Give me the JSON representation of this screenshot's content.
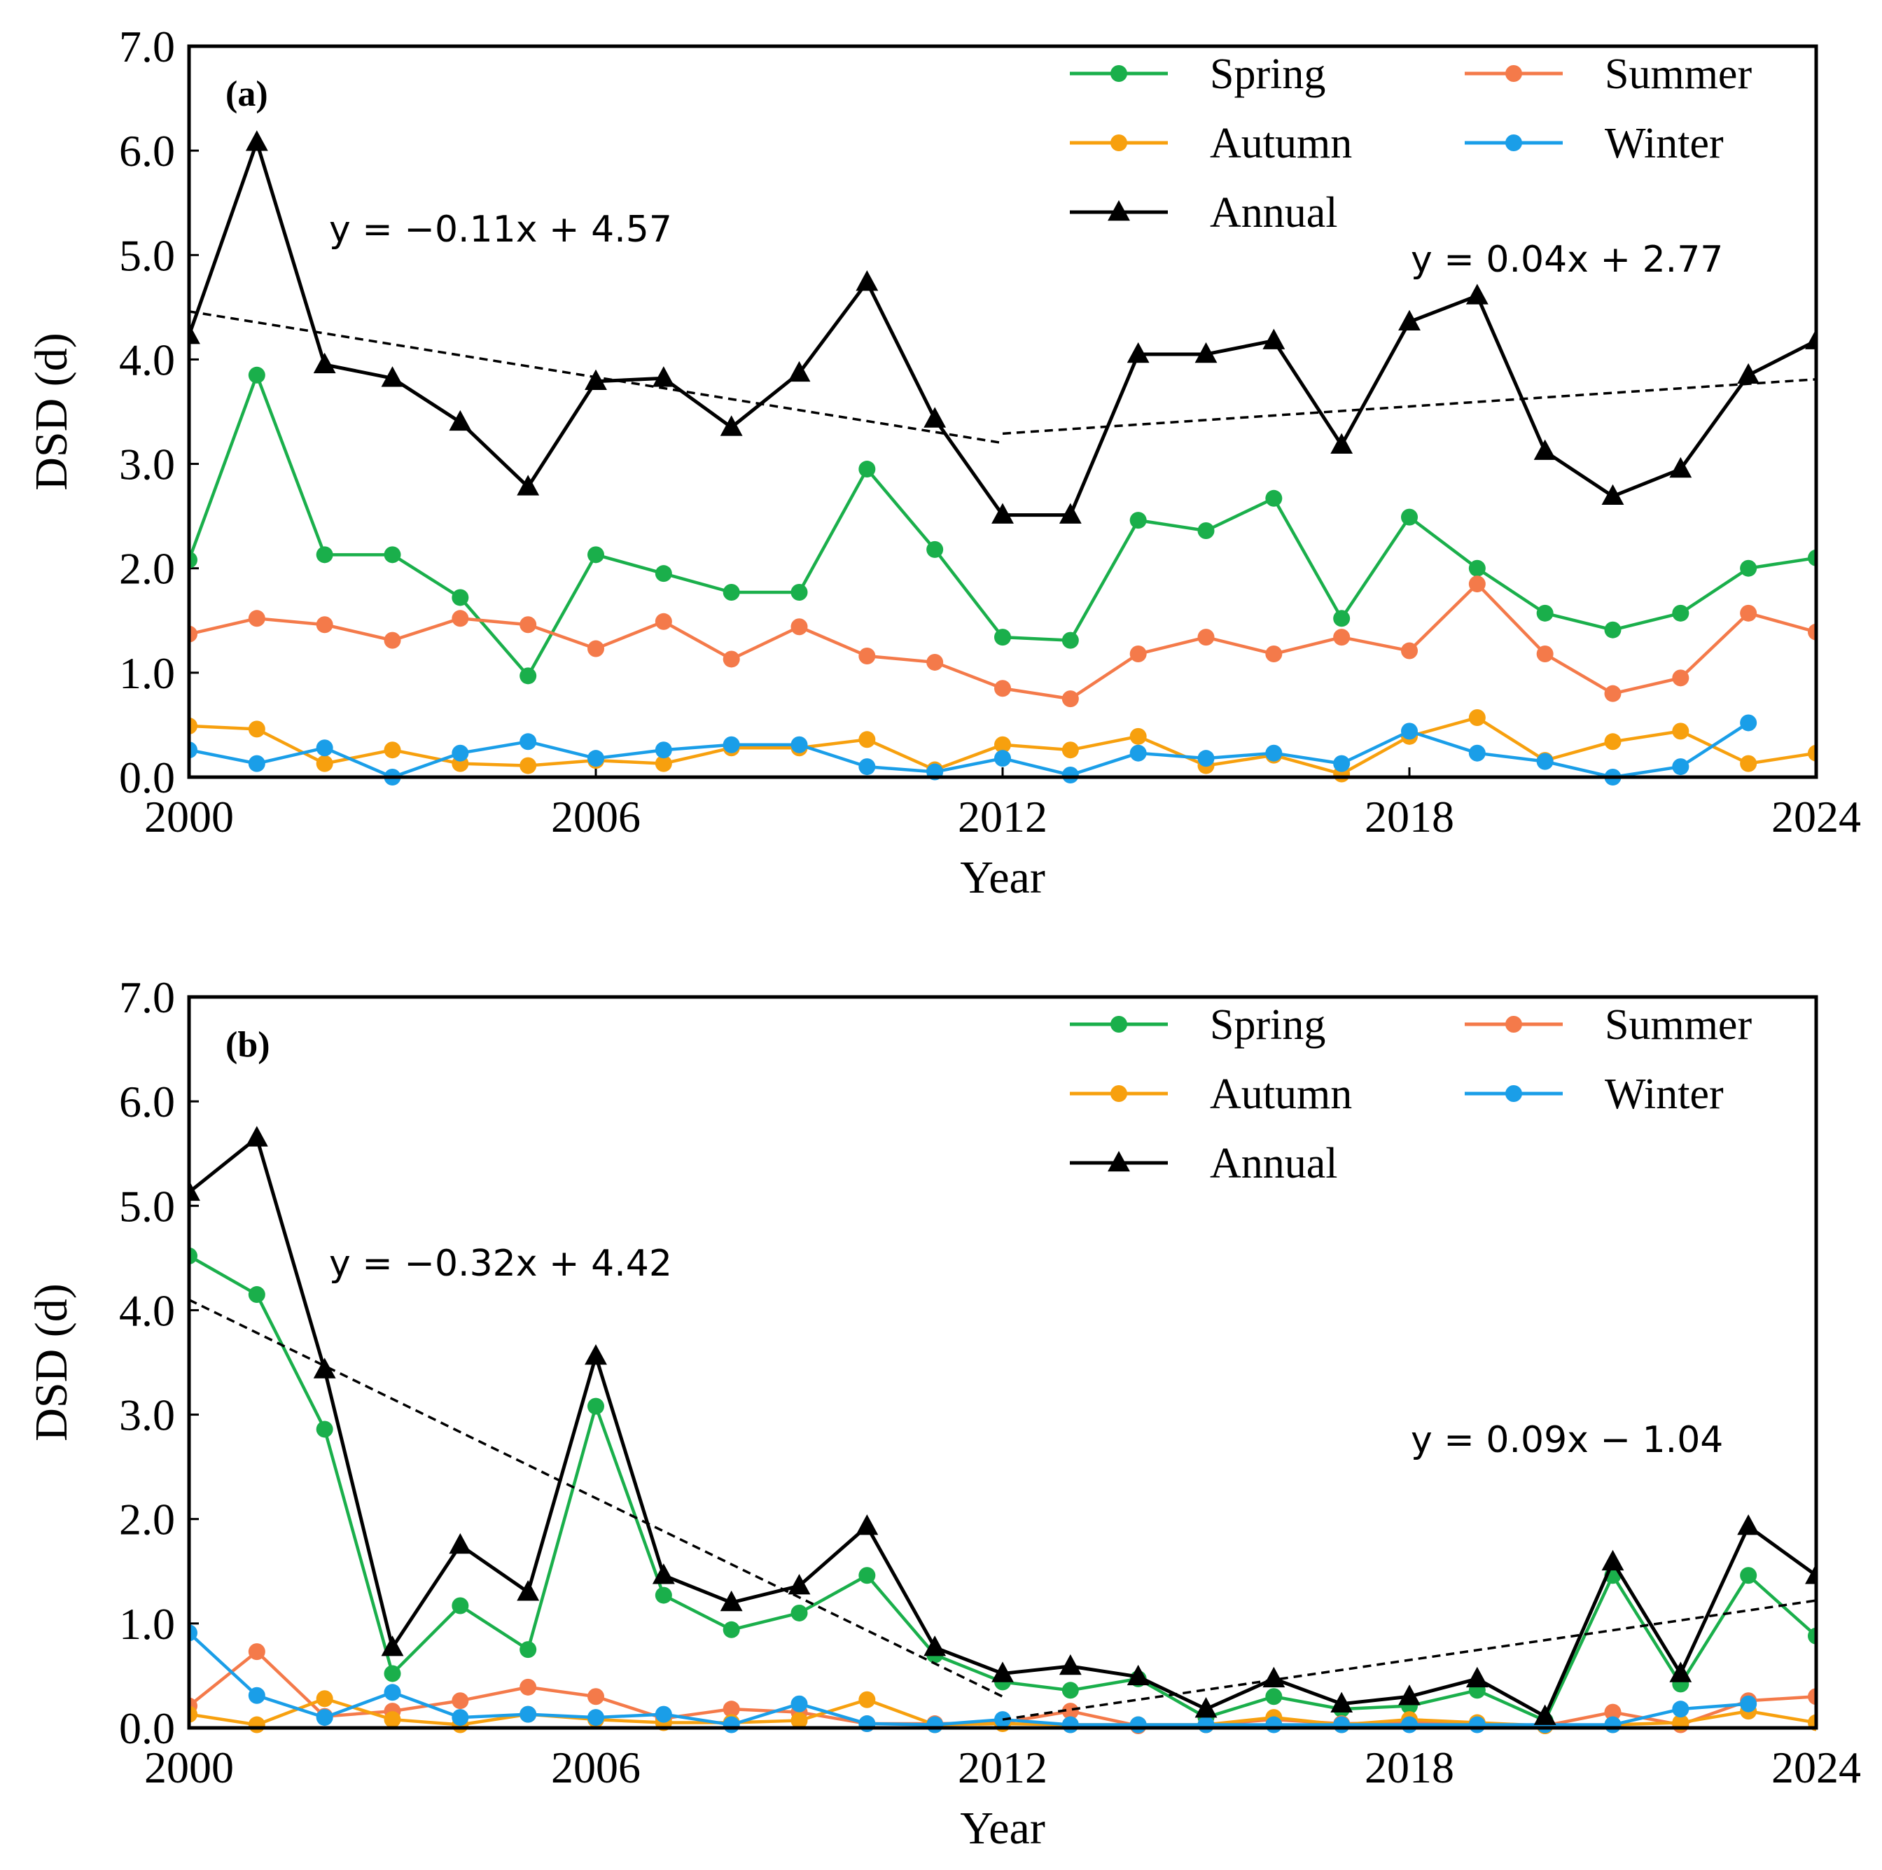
{
  "chart_data": [
    {
      "type": "line",
      "panel_label": "(a)",
      "xlabel": "Year",
      "ylabel": "DSD (d)",
      "xlim": [
        2000,
        2024
      ],
      "ylim": [
        0,
        7
      ],
      "x_ticks": [
        "2000",
        "2006",
        "2012",
        "2018",
        "2024"
      ],
      "y_ticks": [
        "0.0",
        "1.0",
        "2.0",
        "3.0",
        "4.0",
        "5.0",
        "6.0",
        "7.0"
      ],
      "legend_position": "top-right",
      "x": [
        2000,
        2001,
        2002,
        2003,
        2004,
        2005,
        2006,
        2007,
        2008,
        2009,
        2010,
        2011,
        2012,
        2013,
        2014,
        2015,
        2016,
        2017,
        2018,
        2019,
        2020,
        2021,
        2022,
        2023,
        2024
      ],
      "series": [
        {
          "name": "Spring",
          "color": "#1aaf4b",
          "marker": "circle",
          "values": [
            2.08,
            3.85,
            2.13,
            2.13,
            1.72,
            0.97,
            2.13,
            1.95,
            1.77,
            1.77,
            2.95,
            2.18,
            1.34,
            1.31,
            2.46,
            2.36,
            2.67,
            1.52,
            2.49,
            2.0,
            1.57,
            1.41,
            1.57,
            2.0,
            2.1
          ]
        },
        {
          "name": "Summer",
          "color": "#f47a4a",
          "marker": "circle",
          "values": [
            1.37,
            1.52,
            1.46,
            1.31,
            1.52,
            1.46,
            1.23,
            1.49,
            1.13,
            1.44,
            1.16,
            1.1,
            0.85,
            0.75,
            1.18,
            1.34,
            1.18,
            1.34,
            1.21,
            1.85,
            1.18,
            0.8,
            0.95,
            1.57,
            1.39
          ]
        },
        {
          "name": "Autumn",
          "color": "#f7a00e",
          "marker": "circle",
          "values": [
            0.49,
            0.46,
            0.13,
            0.26,
            0.13,
            0.11,
            0.16,
            0.13,
            0.28,
            0.28,
            0.36,
            0.07,
            0.31,
            0.26,
            0.39,
            0.11,
            0.21,
            0.03,
            0.39,
            0.57,
            0.16,
            0.34,
            0.44,
            0.13,
            0.23
          ]
        },
        {
          "name": "Winter",
          "color": "#1a9ee8",
          "marker": "circle",
          "values": [
            0.26,
            0.13,
            0.28,
            0.0,
            0.23,
            0.34,
            0.18,
            0.26,
            0.31,
            0.31,
            0.1,
            0.05,
            0.18,
            0.02,
            0.23,
            0.18,
            0.23,
            0.13,
            0.44,
            0.23,
            0.15,
            0.0,
            0.1,
            0.52,
            null
          ]
        },
        {
          "name": "Annual",
          "color": "#000000",
          "marker": "triangle",
          "values": [
            4.23,
            6.08,
            3.95,
            3.82,
            3.4,
            2.78,
            3.79,
            3.82,
            3.35,
            3.87,
            4.74,
            3.43,
            2.51,
            2.51,
            4.05,
            4.05,
            4.18,
            3.18,
            4.36,
            4.61,
            3.12,
            2.69,
            2.95,
            3.85,
            4.18
          ]
        }
      ],
      "trend_lines": [
        {
          "label": "y = −0.11x + 4.57",
          "x": [
            2000,
            2012
          ],
          "y": [
            4.46,
            3.2
          ]
        },
        {
          "label": "y = 0.04x + 2.77",
          "x": [
            2012,
            2024
          ],
          "y": [
            3.29,
            3.81
          ]
        }
      ]
    },
    {
      "type": "line",
      "panel_label": "(b)",
      "xlabel": "Year",
      "ylabel": "DSD (d)",
      "xlim": [
        2000,
        2024
      ],
      "ylim": [
        0,
        7
      ],
      "x_ticks": [
        "2000",
        "2006",
        "2012",
        "2018",
        "2024"
      ],
      "y_ticks": [
        "0.0",
        "1.0",
        "2.0",
        "3.0",
        "4.0",
        "5.0",
        "6.0",
        "7.0"
      ],
      "legend_position": "top-right",
      "x": [
        2000,
        2001,
        2002,
        2003,
        2004,
        2005,
        2006,
        2007,
        2008,
        2009,
        2010,
        2011,
        2012,
        2013,
        2014,
        2015,
        2016,
        2017,
        2018,
        2019,
        2020,
        2021,
        2022,
        2023,
        2024
      ],
      "series": [
        {
          "name": "Spring",
          "color": "#1aaf4b",
          "marker": "circle",
          "values": [
            4.52,
            4.15,
            2.86,
            0.52,
            1.17,
            0.75,
            3.08,
            1.27,
            0.94,
            1.1,
            1.46,
            0.7,
            0.44,
            0.36,
            0.47,
            0.1,
            0.3,
            0.18,
            0.21,
            0.36,
            0.07,
            1.46,
            0.42,
            1.46,
            0.88
          ]
        },
        {
          "name": "Summer",
          "color": "#f47a4a",
          "marker": "circle",
          "values": [
            0.21,
            0.73,
            0.11,
            0.16,
            0.26,
            0.39,
            0.3,
            0.09,
            0.18,
            0.15,
            0.04,
            0.04,
            0.05,
            0.16,
            0.02,
            0.03,
            0.08,
            0.04,
            0.05,
            0.04,
            0.02,
            0.15,
            0.03,
            0.26,
            0.3
          ]
        },
        {
          "name": "Autumn",
          "color": "#f7a00e",
          "marker": "circle",
          "values": [
            0.13,
            0.03,
            0.28,
            0.08,
            0.03,
            0.13,
            0.08,
            0.05,
            0.05,
            0.07,
            0.27,
            0.03,
            0.04,
            0.03,
            0.03,
            0.03,
            0.1,
            0.03,
            0.08,
            0.05,
            0.02,
            0.03,
            0.05,
            0.16,
            0.05
          ]
        },
        {
          "name": "Winter",
          "color": "#1a9ee8",
          "marker": "circle",
          "values": [
            0.91,
            0.31,
            0.1,
            0.34,
            0.1,
            0.13,
            0.1,
            0.13,
            0.03,
            0.23,
            0.04,
            0.03,
            0.08,
            0.03,
            0.03,
            0.03,
            0.03,
            0.03,
            0.03,
            0.03,
            0.03,
            0.03,
            0.18,
            0.23,
            null
          ]
        },
        {
          "name": "Annual",
          "color": "#000000",
          "marker": "triangle",
          "values": [
            5.13,
            5.65,
            3.43,
            0.77,
            1.75,
            1.3,
            3.56,
            1.46,
            1.2,
            1.36,
            1.93,
            0.77,
            0.52,
            0.59,
            0.49,
            0.18,
            0.47,
            0.23,
            0.3,
            0.47,
            0.11,
            1.59,
            0.52,
            1.93,
            1.46
          ]
        }
      ],
      "trend_lines": [
        {
          "label": "y = −0.32x + 4.42",
          "x": [
            2000,
            2012
          ],
          "y": [
            4.1,
            0.3
          ]
        },
        {
          "label": "y = 0.09x − 1.04",
          "x": [
            2012,
            2024
          ],
          "y": [
            0.08,
            1.22
          ]
        }
      ]
    }
  ]
}
